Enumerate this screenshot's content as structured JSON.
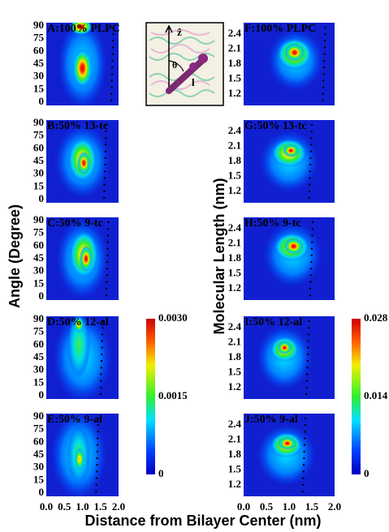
{
  "panels_left": [
    {
      "label": "A:100% PLPC"
    },
    {
      "label": "B:50% 13-tc"
    },
    {
      "label": "C:50% 9-tc"
    },
    {
      "label": "D:50% 12-al"
    },
    {
      "label": "E:50% 9-al"
    }
  ],
  "panels_right": [
    {
      "label": "F:100% PLPC"
    },
    {
      "label": "G:50% 13-tc"
    },
    {
      "label": "H:50% 9-tc"
    },
    {
      "label": "I:50% 12-al"
    },
    {
      "label": "J:50% 9-al"
    }
  ],
  "y_axis_left": {
    "title": "Angle (Degree)",
    "ticks": [
      "90",
      "75",
      "60",
      "45",
      "30",
      "15",
      "0"
    ]
  },
  "y_axis_right": {
    "title": "Molecular Length (nm)",
    "ticks": [
      "2.4",
      "2.1",
      "1.8",
      "1.5",
      "1.2"
    ]
  },
  "x_axis": {
    "title": "Distance from Bilayer Center (nm)",
    "ticks": [
      "0.0",
      "0.5",
      "1.0",
      "1.5",
      "2.0"
    ]
  },
  "colorbar_left": {
    "ticks": [
      "0.0030",
      "0.0015",
      "0"
    ]
  },
  "colorbar_right": {
    "ticks": [
      "0.028",
      "0.014",
      "0"
    ]
  },
  "inset": {
    "labels": [
      "ẑ",
      "θ",
      "l⃗"
    ]
  }
}
